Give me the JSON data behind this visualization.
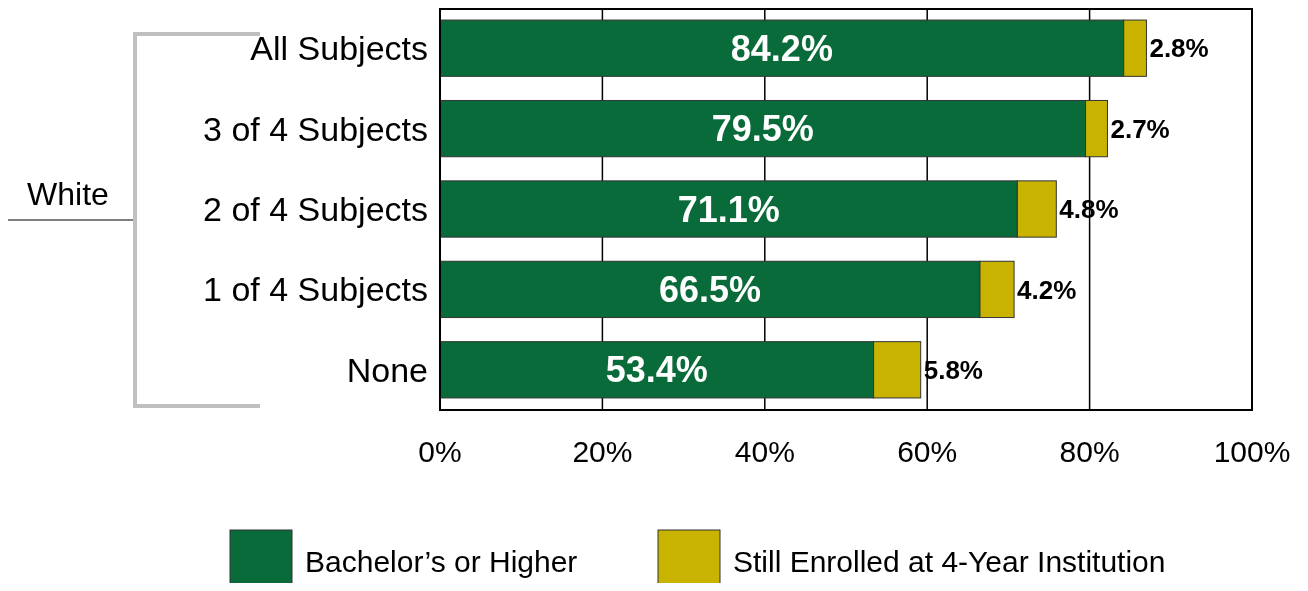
{
  "chart_data": {
    "type": "bar",
    "orientation": "horizontal",
    "stacked": true,
    "ylabel": "White",
    "categories": [
      "All Subjects",
      "3 of 4 Subjects",
      "2 of 4 Subjects",
      "1 of 4 Subjects",
      "None"
    ],
    "series": [
      {
        "name": "Bachelor’s or Higher",
        "color": "#0a6b3a",
        "values": [
          84.2,
          79.5,
          71.1,
          66.5,
          53.4
        ],
        "value_labels": [
          "84.2%",
          "79.5%",
          "71.1%",
          "66.5%",
          "53.4%"
        ]
      },
      {
        "name": "Still Enrolled at 4-Year Institution",
        "color": "#c8b400",
        "values": [
          2.8,
          2.7,
          4.8,
          4.2,
          5.8
        ],
        "value_labels": [
          "2.8%",
          "2.7%",
          "4.8%",
          "4.2%",
          "5.8%"
        ]
      }
    ],
    "xlim": [
      0,
      100
    ],
    "xticks": [
      {
        "value": 0,
        "label": "0%"
      },
      {
        "value": 20,
        "label": "20%"
      },
      {
        "value": 40,
        "label": "40%"
      },
      {
        "value": 60,
        "label": "60%"
      },
      {
        "value": 80,
        "label": "80%"
      },
      {
        "value": 100,
        "label": "100%"
      }
    ],
    "grid": "x",
    "legend": "bottom"
  }
}
